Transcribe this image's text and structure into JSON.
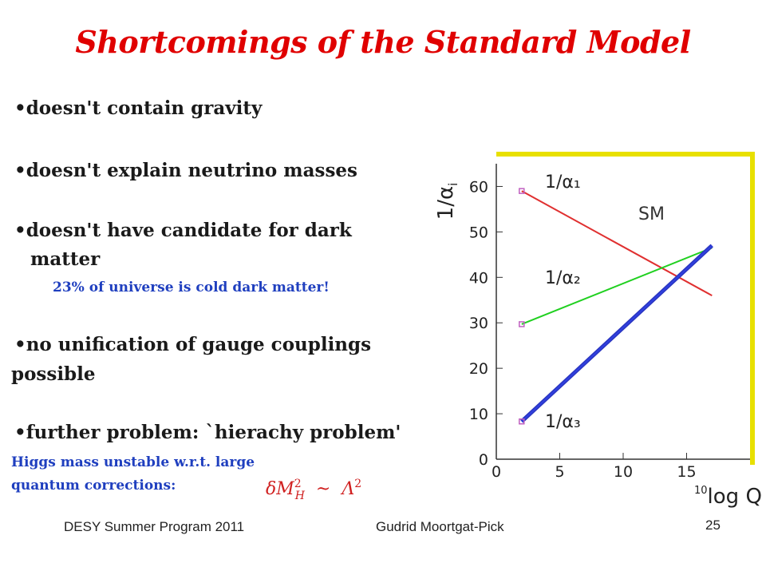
{
  "slide": {
    "title": "Shortcomings of the Standard Model",
    "bullets": [
      "•doesn't contain gravity",
      "•doesn't explain neutrino masses",
      "•doesn't have candidate for dark",
      "matter",
      "•no unification of gauge couplings",
      "possible",
      "•further problem: `hierachy problem'"
    ],
    "dark_matter_note": "23% of universe is cold dark matter!",
    "higgs_note_line1": "Higgs mass unstable w.r.t. large",
    "higgs_note_line2": "quantum corrections:",
    "formula": "δM²_H ~ Λ²",
    "footer_left": "DESY Summer Program 2011",
    "footer_center": "Gudrid Moortgat-Pick",
    "page_number": "25"
  },
  "chart_data": {
    "type": "line",
    "title": "",
    "annotation": "SM",
    "ylabel": "1/α_i",
    "xlabel": "10 log Q",
    "xlim": [
      0,
      20
    ],
    "ylim": [
      0,
      65
    ],
    "xticks": [
      0,
      5,
      10,
      15
    ],
    "yticks": [
      0,
      10,
      20,
      30,
      40,
      50,
      60
    ],
    "grid": false,
    "series": [
      {
        "name": "1/α₁",
        "color": "#e03030",
        "x": [
          2,
          17
        ],
        "y": [
          59,
          36
        ]
      },
      {
        "name": "1/α₂",
        "color": "#20d020",
        "x": [
          2,
          17
        ],
        "y": [
          29.7,
          46.5
        ]
      },
      {
        "name": "1/α₃",
        "color": "#3040e0",
        "x": [
          2,
          17
        ],
        "y": [
          8.3,
          47
        ]
      }
    ]
  }
}
